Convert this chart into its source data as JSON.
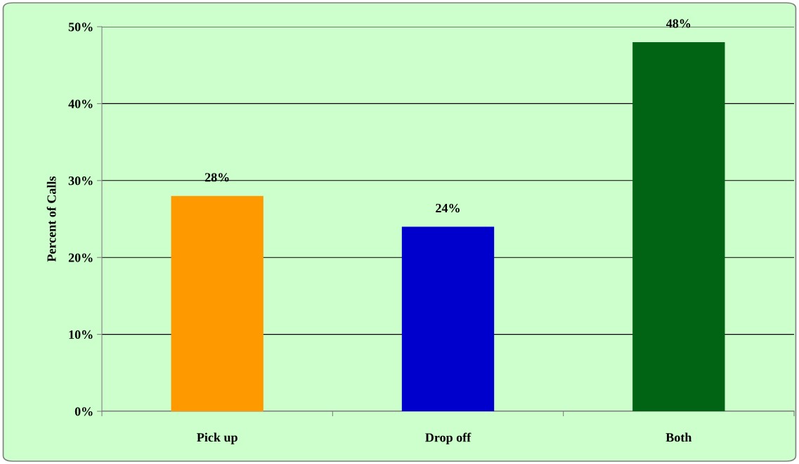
{
  "chart_data": {
    "type": "bar",
    "ylabel": "Percent of Calls",
    "categories": [
      "Pick up",
      "Drop off",
      "Both"
    ],
    "values": [
      28,
      24,
      48
    ],
    "colors": [
      "#ff9900",
      "#0000cc",
      "#006414"
    ],
    "value_labels": [
      "28%",
      "24%",
      "48%"
    ],
    "ylim": [
      0,
      50
    ],
    "yticks": [
      {
        "value": 0,
        "label": "0%"
      },
      {
        "value": 10,
        "label": "10%"
      },
      {
        "value": 20,
        "label": "20%"
      },
      {
        "value": 30,
        "label": "30%"
      },
      {
        "value": 40,
        "label": "40%"
      },
      {
        "value": 50,
        "label": "50%"
      }
    ],
    "grid": "y",
    "legend": false
  }
}
